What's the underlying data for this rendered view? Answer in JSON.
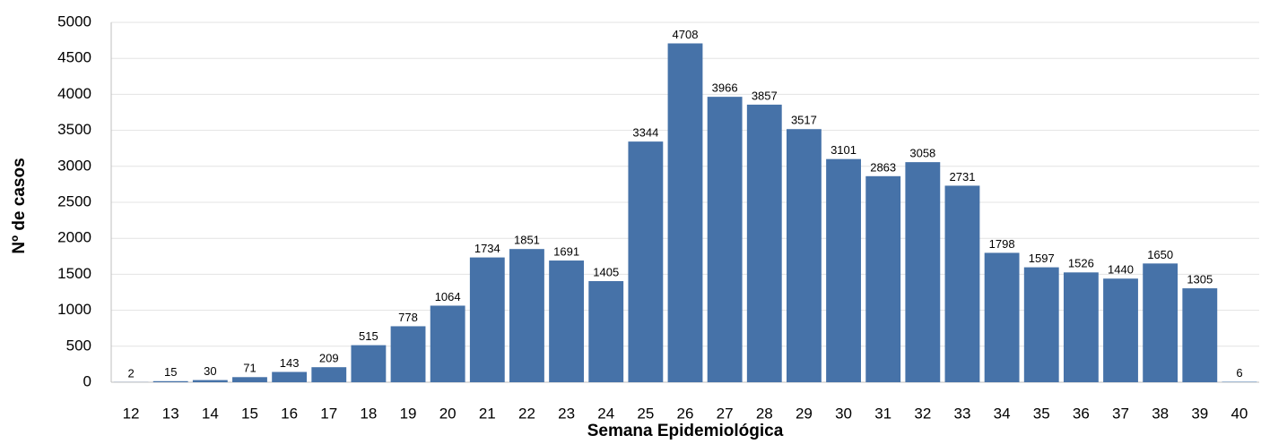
{
  "chart_data": {
    "type": "bar",
    "x_label": "Semana Epidemiológica",
    "y_label": "Nº de casos",
    "categories": [
      "12",
      "13",
      "14",
      "15",
      "16",
      "17",
      "18",
      "19",
      "20",
      "21",
      "22",
      "23",
      "24",
      "25",
      "26",
      "27",
      "28",
      "29",
      "30",
      "31",
      "32",
      "33",
      "34",
      "35",
      "36",
      "37",
      "38",
      "39",
      "40"
    ],
    "values": [
      2,
      15,
      30,
      71,
      143,
      209,
      515,
      778,
      1064,
      1734,
      1851,
      1691,
      1405,
      3344,
      4708,
      3966,
      3857,
      3517,
      3101,
      2863,
      3058,
      2731,
      1798,
      1597,
      1526,
      1440,
      1650,
      1305,
      6
    ],
    "color": "#4672a8",
    "ylim": [
      0,
      5000
    ],
    "yticks": [
      0,
      500,
      1000,
      1500,
      2000,
      2500,
      3000,
      3500,
      4000,
      4500,
      5000
    ],
    "grid": true
  }
}
